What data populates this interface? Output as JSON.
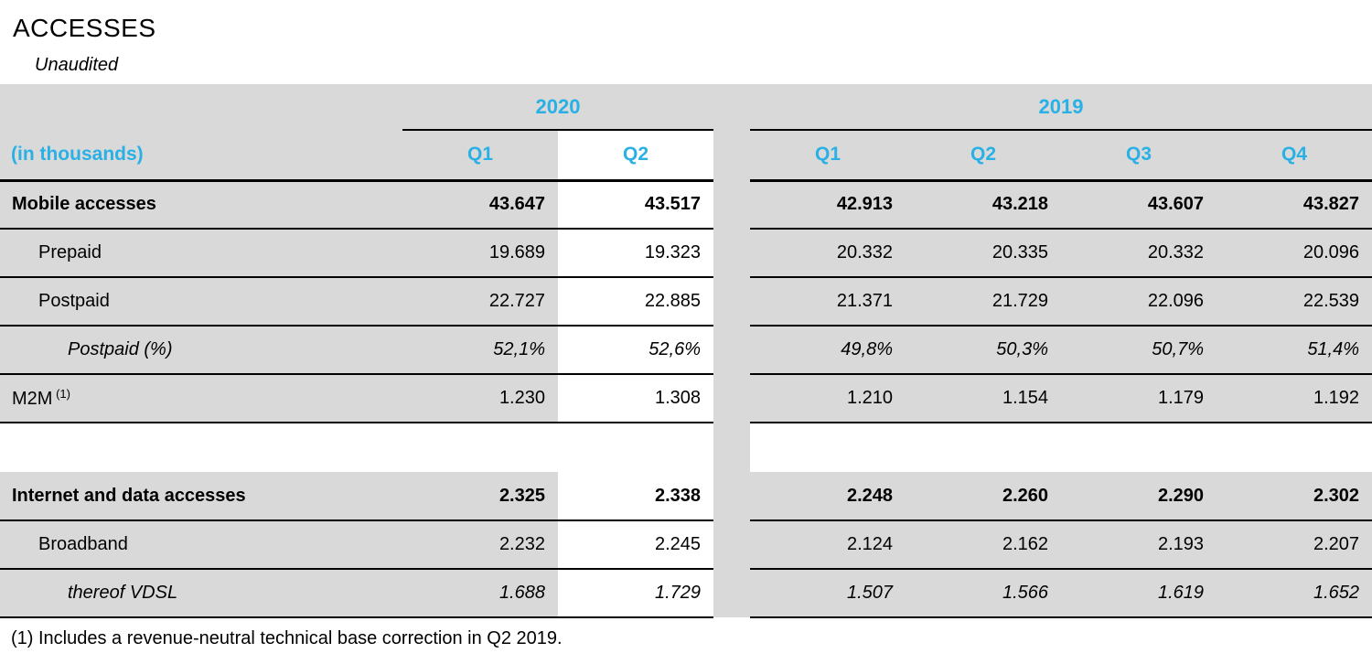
{
  "page": {
    "title": "ACCESSES",
    "subtitle": "Unaudited",
    "footnote": "(1) Includes a revenue-neutral technical base correction in Q2 2019."
  },
  "colors": {
    "accent_cyan": "#29B0E5",
    "row_gray": "#D9D9D9",
    "line_black": "#000000",
    "highlight_column_bg": "#FFFFFF"
  },
  "table": {
    "unit_label": "(in thousands)",
    "year_groups": [
      {
        "label": "2020",
        "quarters": [
          "Q1",
          "Q2"
        ]
      },
      {
        "label": "2019",
        "quarters": [
          "Q1",
          "Q2",
          "Q3",
          "Q4"
        ]
      }
    ],
    "highlighted_column": "2020 Q2",
    "rows": [
      {
        "label": "Mobile accesses",
        "bold": true,
        "indent": 0,
        "v2020": [
          "43.647",
          "43.517"
        ],
        "v2019": [
          "42.913",
          "43.218",
          "43.607",
          "43.827"
        ]
      },
      {
        "label": "Prepaid",
        "indent": 1,
        "v2020": [
          "19.689",
          "19.323"
        ],
        "v2019": [
          "20.332",
          "20.335",
          "20.332",
          "20.096"
        ]
      },
      {
        "label": "Postpaid",
        "indent": 1,
        "v2020": [
          "22.727",
          "22.885"
        ],
        "v2019": [
          "21.371",
          "21.729",
          "22.096",
          "22.539"
        ]
      },
      {
        "label": "Postpaid (%)",
        "italic": true,
        "indent": 2,
        "v2020": [
          "52,1%",
          "52,6%"
        ],
        "v2019": [
          "49,8%",
          "50,3%",
          "50,7%",
          "51,4%"
        ]
      },
      {
        "label": "M2M",
        "sup": "(1)",
        "indent": 0,
        "v2020": [
          "1.230",
          "1.308"
        ],
        "v2019": [
          "1.210",
          "1.154",
          "1.179",
          "1.192"
        ]
      },
      {
        "type": "spacer"
      },
      {
        "label": "Internet and data accesses",
        "bold": true,
        "indent": 0,
        "v2020": [
          "2.325",
          "2.338"
        ],
        "v2019": [
          "2.248",
          "2.260",
          "2.290",
          "2.302"
        ]
      },
      {
        "label": "Broadband",
        "indent": 1,
        "v2020": [
          "2.232",
          "2.245"
        ],
        "v2019": [
          "2.124",
          "2.162",
          "2.193",
          "2.207"
        ]
      },
      {
        "label": "thereof VDSL",
        "italic": true,
        "indent": 2,
        "v2020": [
          "1.688",
          "1.729"
        ],
        "v2019": [
          "1.507",
          "1.566",
          "1.619",
          "1.652"
        ]
      }
    ]
  }
}
